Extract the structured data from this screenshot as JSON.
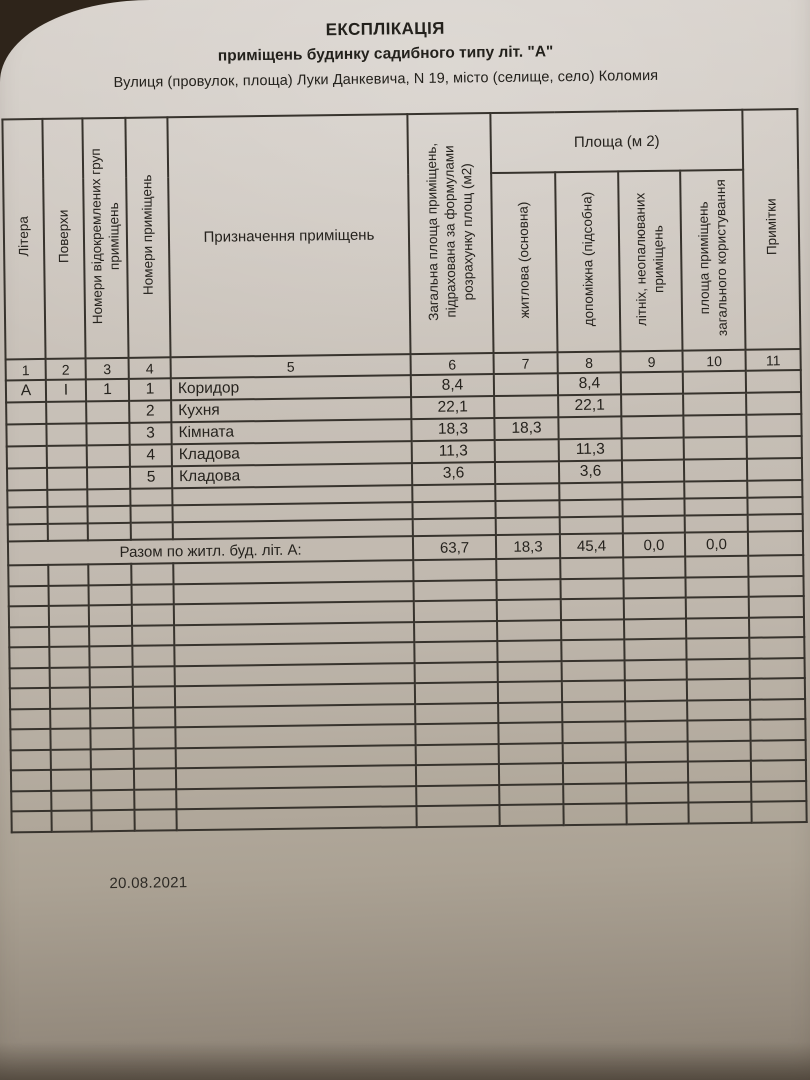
{
  "title": "ЕКСПЛІКАЦІЯ",
  "subtitle": "приміщень будинку садибного типу літ. \"А\"",
  "address_line": "Вулиця (провулок, площа) Луки Данкевича,  N 19,  місто (селище, село) Коломия",
  "date": "20.08.2021",
  "table": {
    "area_group_header": "Площа (м 2)",
    "columns": [
      {
        "num": "1",
        "label": "Літера"
      },
      {
        "num": "2",
        "label": "Поверхи"
      },
      {
        "num": "3",
        "label": "Номери відокремлених груп приміщень"
      },
      {
        "num": "4",
        "label": "Номери приміщень"
      },
      {
        "num": "5",
        "label": "Призначення приміщень"
      },
      {
        "num": "6",
        "label": "Загальна площа приміщень, підрахована за формулами розрахунку площ (м2)"
      },
      {
        "num": "7",
        "label": "житлова (основна)"
      },
      {
        "num": "8",
        "label": "допоміжна (підсобна)"
      },
      {
        "num": "9",
        "label": "літніх, неопалюваних приміщень"
      },
      {
        "num": "10",
        "label": "площа приміщень загального користування"
      },
      {
        "num": "11",
        "label": "Примітки"
      }
    ],
    "rows": [
      [
        "А",
        "І",
        "1",
        "1",
        "Коридор",
        "8,4",
        "",
        "8,4",
        "",
        "",
        ""
      ],
      [
        "",
        "",
        "",
        "2",
        "Кухня",
        "22,1",
        "",
        "22,1",
        "",
        "",
        ""
      ],
      [
        "",
        "",
        "",
        "3",
        "Кімната",
        "18,3",
        "18,3",
        "",
        "",
        "",
        ""
      ],
      [
        "",
        "",
        "",
        "4",
        "Кладова",
        "11,3",
        "",
        "11,3",
        "",
        "",
        ""
      ],
      [
        "",
        "",
        "",
        "5",
        "Кладова",
        "3,6",
        "",
        "3,6",
        "",
        "",
        ""
      ],
      [
        "",
        "",
        "",
        "",
        "",
        "",
        "",
        "",
        "",
        "",
        ""
      ],
      [
        "",
        "",
        "",
        "",
        "",
        "",
        "",
        "",
        "",
        "",
        ""
      ],
      [
        "",
        "",
        "",
        "",
        "",
        "",
        "",
        "",
        "",
        "",
        ""
      ]
    ],
    "total_row": {
      "label": "Разом по житл. буд. літ. А:",
      "values": [
        "63,7",
        "18,3",
        "45,4",
        "0,0",
        "0,0",
        ""
      ]
    },
    "empty_rows_bottom": 13
  }
}
